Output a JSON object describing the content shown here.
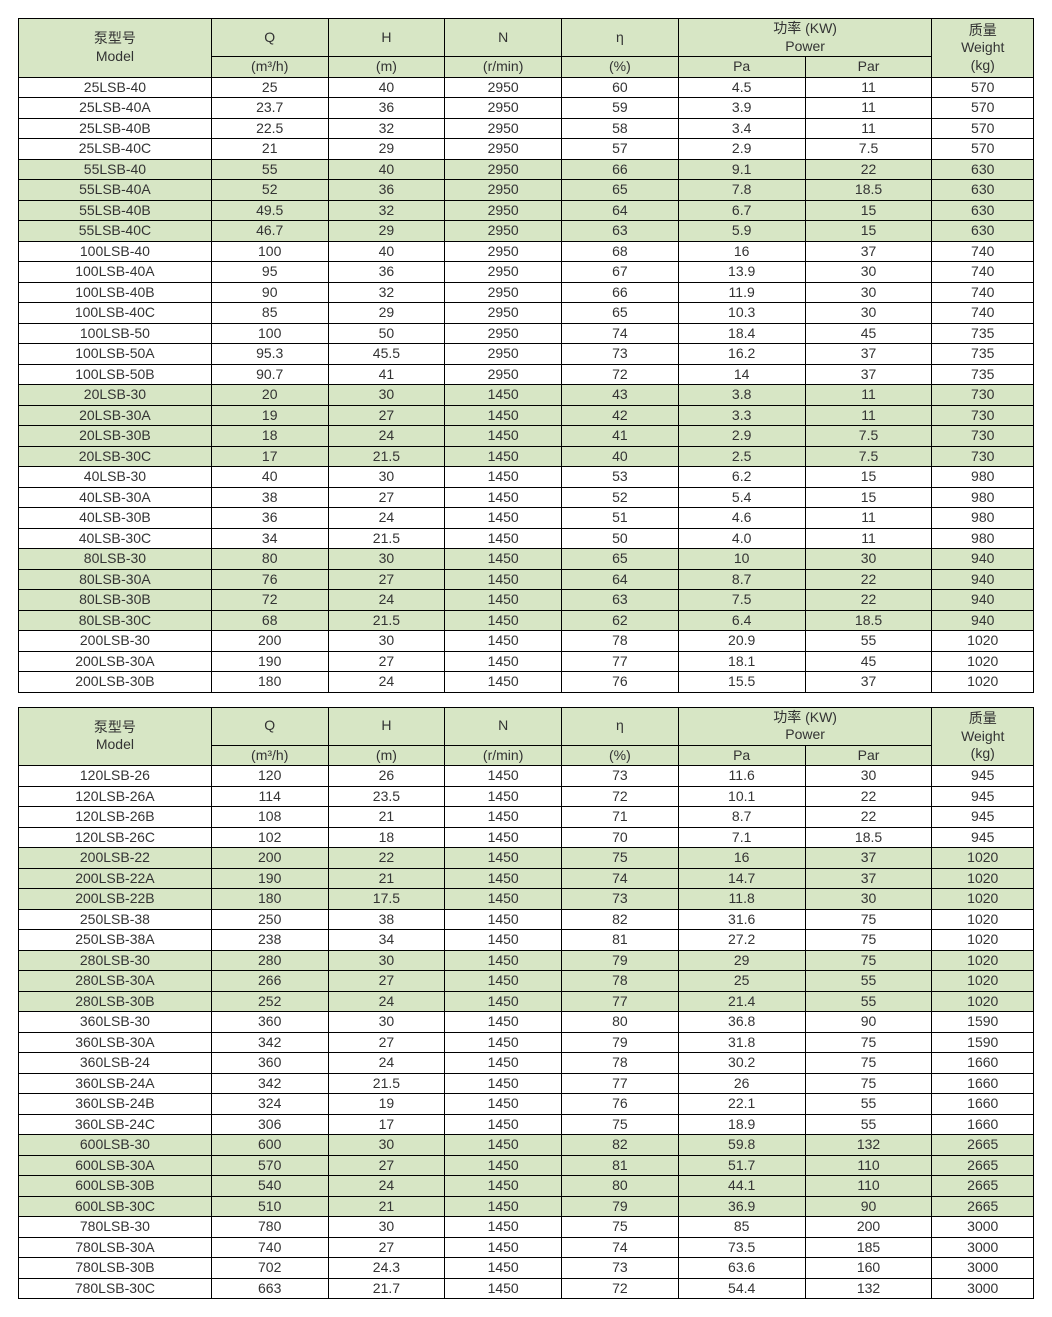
{
  "colors": {
    "header_bg": "#d7e6c5",
    "green_bg": "#d7e6c5",
    "white_bg": "#ffffff",
    "border": "#000000",
    "text": "#333333"
  },
  "font": {
    "family": "Arial, Microsoft YaHei, sans-serif",
    "size_pt": 11
  },
  "header": {
    "model_cn": "泵型号",
    "model_en": "Model",
    "q": "Q",
    "q_unit": "(m³/h)",
    "h": "H",
    "h_unit": "(m)",
    "n": "N",
    "n_unit": "(r/min)",
    "eta": "η",
    "eta_unit": "(%)",
    "power_cn": "功率 (KW)",
    "power_en": "Power",
    "pa": "Pa",
    "par": "Par",
    "weight_cn": "质量",
    "weight_en": "Weight",
    "weight_unit": "(kg)"
  },
  "tables": [
    {
      "groups": [
        {
          "color": "white",
          "rows": [
            [
              "25LSB-40",
              "25",
              "40",
              "2950",
              "60",
              "4.5",
              "11",
              "570"
            ],
            [
              "25LSB-40A",
              "23.7",
              "36",
              "2950",
              "59",
              "3.9",
              "11",
              "570"
            ],
            [
              "25LSB-40B",
              "22.5",
              "32",
              "2950",
              "58",
              "3.4",
              "11",
              "570"
            ],
            [
              "25LSB-40C",
              "21",
              "29",
              "2950",
              "57",
              "2.9",
              "7.5",
              "570"
            ]
          ]
        },
        {
          "color": "green",
          "rows": [
            [
              "55LSB-40",
              "55",
              "40",
              "2950",
              "66",
              "9.1",
              "22",
              "630"
            ],
            [
              "55LSB-40A",
              "52",
              "36",
              "2950",
              "65",
              "7.8",
              "18.5",
              "630"
            ],
            [
              "55LSB-40B",
              "49.5",
              "32",
              "2950",
              "64",
              "6.7",
              "15",
              "630"
            ],
            [
              "55LSB-40C",
              "46.7",
              "29",
              "2950",
              "63",
              "5.9",
              "15",
              "630"
            ]
          ]
        },
        {
          "color": "white",
          "rows": [
            [
              "100LSB-40",
              "100",
              "40",
              "2950",
              "68",
              "16",
              "37",
              "740"
            ],
            [
              "100LSB-40A",
              "95",
              "36",
              "2950",
              "67",
              "13.9",
              "30",
              "740"
            ],
            [
              "100LSB-40B",
              "90",
              "32",
              "2950",
              "66",
              "11.9",
              "30",
              "740"
            ],
            [
              "100LSB-40C",
              "85",
              "29",
              "2950",
              "65",
              "10.3",
              "30",
              "740"
            ],
            [
              "100LSB-50",
              "100",
              "50",
              "2950",
              "74",
              "18.4",
              "45",
              "735"
            ],
            [
              "100LSB-50A",
              "95.3",
              "45.5",
              "2950",
              "73",
              "16.2",
              "37",
              "735"
            ],
            [
              "100LSB-50B",
              "90.7",
              "41",
              "2950",
              "72",
              "14",
              "37",
              "735"
            ]
          ]
        },
        {
          "color": "green",
          "rows": [
            [
              "20LSB-30",
              "20",
              "30",
              "1450",
              "43",
              "3.8",
              "11",
              "730"
            ],
            [
              "20LSB-30A",
              "19",
              "27",
              "1450",
              "42",
              "3.3",
              "11",
              "730"
            ],
            [
              "20LSB-30B",
              "18",
              "24",
              "1450",
              "41",
              "2.9",
              "7.5",
              "730"
            ],
            [
              "20LSB-30C",
              "17",
              "21.5",
              "1450",
              "40",
              "2.5",
              "7.5",
              "730"
            ]
          ]
        },
        {
          "color": "white",
          "rows": [
            [
              "40LSB-30",
              "40",
              "30",
              "1450",
              "53",
              "6.2",
              "15",
              "980"
            ],
            [
              "40LSB-30A",
              "38",
              "27",
              "1450",
              "52",
              "5.4",
              "15",
              "980"
            ],
            [
              "40LSB-30B",
              "36",
              "24",
              "1450",
              "51",
              "4.6",
              "11",
              "980"
            ],
            [
              "40LSB-30C",
              "34",
              "21.5",
              "1450",
              "50",
              "4.0",
              "11",
              "980"
            ]
          ]
        },
        {
          "color": "green",
          "rows": [
            [
              "80LSB-30",
              "80",
              "30",
              "1450",
              "65",
              "10",
              "30",
              "940"
            ],
            [
              "80LSB-30A",
              "76",
              "27",
              "1450",
              "64",
              "8.7",
              "22",
              "940"
            ],
            [
              "80LSB-30B",
              "72",
              "24",
              "1450",
              "63",
              "7.5",
              "22",
              "940"
            ],
            [
              "80LSB-30C",
              "68",
              "21.5",
              "1450",
              "62",
              "6.4",
              "18.5",
              "940"
            ]
          ]
        },
        {
          "color": "white",
          "rows": [
            [
              "200LSB-30",
              "200",
              "30",
              "1450",
              "78",
              "20.9",
              "55",
              "1020"
            ],
            [
              "200LSB-30A",
              "190",
              "27",
              "1450",
              "77",
              "18.1",
              "45",
              "1020"
            ],
            [
              "200LSB-30B",
              "180",
              "24",
              "1450",
              "76",
              "15.5",
              "37",
              "1020"
            ]
          ]
        }
      ]
    },
    {
      "groups": [
        {
          "color": "white",
          "rows": [
            [
              "120LSB-26",
              "120",
              "26",
              "1450",
              "73",
              "11.6",
              "30",
              "945"
            ],
            [
              "120LSB-26A",
              "114",
              "23.5",
              "1450",
              "72",
              "10.1",
              "22",
              "945"
            ],
            [
              "120LSB-26B",
              "108",
              "21",
              "1450",
              "71",
              "8.7",
              "22",
              "945"
            ],
            [
              "120LSB-26C",
              "102",
              "18",
              "1450",
              "70",
              "7.1",
              "18.5",
              "945"
            ]
          ]
        },
        {
          "color": "green",
          "rows": [
            [
              "200LSB-22",
              "200",
              "22",
              "1450",
              "75",
              "16",
              "37",
              "1020"
            ],
            [
              "200LSB-22A",
              "190",
              "21",
              "1450",
              "74",
              "14.7",
              "37",
              "1020"
            ],
            [
              "200LSB-22B",
              "180",
              "17.5",
              "1450",
              "73",
              "11.8",
              "30",
              "1020"
            ]
          ]
        },
        {
          "color": "white",
          "rows": [
            [
              "250LSB-38",
              "250",
              "38",
              "1450",
              "82",
              "31.6",
              "75",
              "1020"
            ],
            [
              "250LSB-38A",
              "238",
              "34",
              "1450",
              "81",
              "27.2",
              "75",
              "1020"
            ]
          ]
        },
        {
          "color": "green",
          "rows": [
            [
              "280LSB-30",
              "280",
              "30",
              "1450",
              "79",
              "29",
              "75",
              "1020"
            ],
            [
              "280LSB-30A",
              "266",
              "27",
              "1450",
              "78",
              "25",
              "55",
              "1020"
            ],
            [
              "280LSB-30B",
              "252",
              "24",
              "1450",
              "77",
              "21.4",
              "55",
              "1020"
            ]
          ]
        },
        {
          "color": "white",
          "rows": [
            [
              "360LSB-30",
              "360",
              "30",
              "1450",
              "80",
              "36.8",
              "90",
              "1590"
            ],
            [
              "360LSB-30A",
              "342",
              "27",
              "1450",
              "79",
              "31.8",
              "75",
              "1590"
            ],
            [
              "360LSB-24",
              "360",
              "24",
              "1450",
              "78",
              "30.2",
              "75",
              "1660"
            ],
            [
              "360LSB-24A",
              "342",
              "21.5",
              "1450",
              "77",
              "26",
              "75",
              "1660"
            ],
            [
              "360LSB-24B",
              "324",
              "19",
              "1450",
              "76",
              "22.1",
              "55",
              "1660"
            ],
            [
              "360LSB-24C",
              "306",
              "17",
              "1450",
              "75",
              "18.9",
              "55",
              "1660"
            ]
          ]
        },
        {
          "color": "green",
          "rows": [
            [
              "600LSB-30",
              "600",
              "30",
              "1450",
              "82",
              "59.8",
              "132",
              "2665"
            ],
            [
              "600LSB-30A",
              "570",
              "27",
              "1450",
              "81",
              "51.7",
              "110",
              "2665"
            ],
            [
              "600LSB-30B",
              "540",
              "24",
              "1450",
              "80",
              "44.1",
              "110",
              "2665"
            ],
            [
              "600LSB-30C",
              "510",
              "21",
              "1450",
              "79",
              "36.9",
              "90",
              "2665"
            ]
          ]
        },
        {
          "color": "white",
          "rows": [
            [
              "780LSB-30",
              "780",
              "30",
              "1450",
              "75",
              "85",
              "200",
              "3000"
            ],
            [
              "780LSB-30A",
              "740",
              "27",
              "1450",
              "74",
              "73.5",
              "185",
              "3000"
            ],
            [
              "780LSB-30B",
              "702",
              "24.3",
              "1450",
              "73",
              "63.6",
              "160",
              "3000"
            ],
            [
              "780LSB-30C",
              "663",
              "21.7",
              "1450",
              "72",
              "54.4",
              "132",
              "3000"
            ]
          ]
        }
      ]
    }
  ]
}
